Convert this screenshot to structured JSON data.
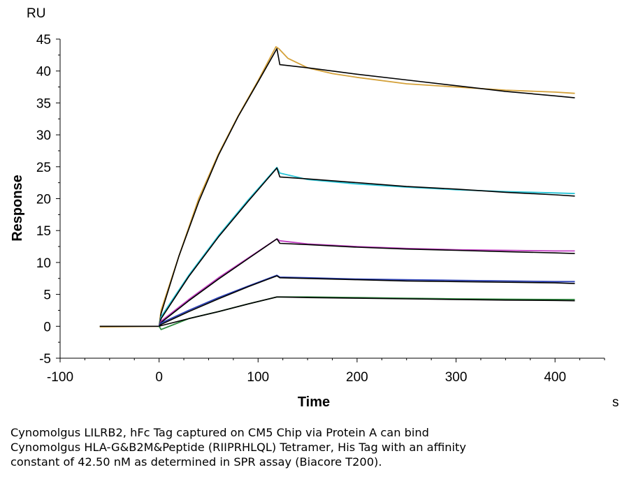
{
  "chart_data": {
    "type": "line",
    "title": "",
    "xlabel": "Time",
    "ylabel": "Response",
    "x_unit": "s",
    "y_unit": "RU",
    "xlim": [
      -100,
      450
    ],
    "ylim": [
      -5,
      45
    ],
    "x_ticks": [
      -100,
      0,
      100,
      200,
      300,
      400
    ],
    "y_ticks": [
      -5,
      0,
      5,
      10,
      15,
      20,
      25,
      30,
      35,
      40,
      45
    ],
    "grid": false,
    "legend": "none",
    "series": [
      {
        "color": "#d4a13a",
        "x": [
          -60,
          0,
          2,
          20,
          40,
          60,
          80,
          100,
          118,
          121,
          130,
          150,
          175,
          200,
          250,
          300,
          350,
          400,
          420
        ],
        "y": [
          -0.1,
          0,
          2.5,
          11,
          20,
          27,
          33,
          38.5,
          43.8,
          43.5,
          42,
          40.5,
          39.6,
          39,
          38,
          37.5,
          37,
          36.7,
          36.5
        ]
      },
      {
        "color": "#000000",
        "x": [
          -60,
          0,
          2,
          20,
          40,
          60,
          80,
          100,
          119,
          122,
          150,
          200,
          250,
          300,
          350,
          400,
          420
        ],
        "y": [
          0,
          0,
          2,
          11,
          19.5,
          26.8,
          32.9,
          38.3,
          43.5,
          41,
          40.5,
          39.5,
          38.6,
          37.7,
          36.8,
          36.1,
          35.8
        ]
      },
      {
        "color": "#29c4d6",
        "x": [
          0,
          2,
          30,
          60,
          90,
          119,
          122,
          150,
          200,
          250,
          300,
          350,
          400,
          420
        ],
        "y": [
          0,
          1.5,
          8,
          14.2,
          19.8,
          24.9,
          24,
          23,
          22.3,
          21.8,
          21.4,
          21.1,
          20.9,
          20.8
        ]
      },
      {
        "color": "#000000",
        "x": [
          0,
          2,
          30,
          60,
          90,
          119,
          122,
          150,
          200,
          250,
          300,
          350,
          400,
          420
        ],
        "y": [
          0,
          1.2,
          7.8,
          14,
          19.6,
          24.8,
          23.4,
          23.1,
          22.5,
          21.9,
          21.5,
          21,
          20.6,
          20.4
        ]
      },
      {
        "color": "#c23ec2",
        "x": [
          0,
          2,
          30,
          60,
          90,
          119,
          122,
          150,
          200,
          250,
          300,
          350,
          400,
          420
        ],
        "y": [
          0,
          0.8,
          4.2,
          7.6,
          10.7,
          13.7,
          13.4,
          12.9,
          12.5,
          12.2,
          12,
          11.9,
          11.8,
          11.8
        ]
      },
      {
        "color": "#000000",
        "x": [
          0,
          2,
          30,
          60,
          90,
          119,
          122,
          150,
          200,
          250,
          300,
          350,
          400,
          420
        ],
        "y": [
          0,
          0.6,
          4,
          7.4,
          10.6,
          13.7,
          13,
          12.8,
          12.4,
          12.1,
          11.9,
          11.7,
          11.5,
          11.4
        ]
      },
      {
        "color": "#2a3fb5",
        "x": [
          0,
          2,
          30,
          60,
          90,
          119,
          122,
          150,
          200,
          250,
          300,
          350,
          400,
          420
        ],
        "y": [
          0,
          0.5,
          2.5,
          4.5,
          6.3,
          8,
          7.7,
          7.6,
          7.4,
          7.3,
          7.2,
          7.1,
          7,
          7
        ]
      },
      {
        "color": "#000000",
        "x": [
          0,
          2,
          30,
          60,
          90,
          119,
          122,
          150,
          200,
          250,
          300,
          350,
          400,
          420
        ],
        "y": [
          0,
          0.3,
          2.3,
          4.3,
          6.2,
          7.9,
          7.6,
          7.5,
          7.3,
          7.1,
          7,
          6.9,
          6.8,
          6.7
        ]
      },
      {
        "color": "#2d8a3e",
        "x": [
          0,
          2,
          30,
          60,
          90,
          119,
          122,
          150,
          200,
          250,
          300,
          350,
          400,
          420
        ],
        "y": [
          0,
          -0.5,
          1.2,
          2.3,
          3.5,
          4.6,
          4.6,
          4.6,
          4.5,
          4.4,
          4.3,
          4.25,
          4.2,
          4.2
        ]
      },
      {
        "color": "#000000",
        "x": [
          0,
          2,
          30,
          60,
          90,
          119,
          122,
          150,
          200,
          250,
          300,
          350,
          400,
          420
        ],
        "y": [
          0,
          0.1,
          1.2,
          2.3,
          3.5,
          4.6,
          4.6,
          4.5,
          4.4,
          4.3,
          4.2,
          4.1,
          4.05,
          4
        ]
      }
    ]
  },
  "caption": {
    "line1": "Cynomolgus LILRB2, hFc Tag captured on CM5 Chip via Protein A can bind",
    "line2": "Cynomolgus HLA-G&B2M&Peptide (RIIPRHLQL) Tetramer, His Tag with an affinity",
    "line3": "constant of 42.50 nM as determined in SPR assay (Biacore T200)."
  }
}
